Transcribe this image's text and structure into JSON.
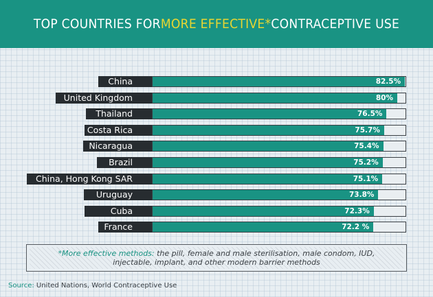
{
  "header": {
    "title_part1": "TOP COUNTRIES FOR ",
    "title_highlight": "MORE EFFECTIVE*",
    "title_part2": " CONTRACEPTIVE USE"
  },
  "colors": {
    "accent": "#199383",
    "highlight": "#e8d631",
    "label_bg": "#272c30",
    "track_bg": "#e9eef1"
  },
  "chart_data": {
    "type": "bar",
    "orientation": "horizontal",
    "categories": [
      "China",
      "United Kingdom",
      "Thailand",
      "Costa Rica",
      "Nicaragua",
      "Brazil",
      "China, Hong Kong SAR",
      "Uruguay",
      "Cuba",
      "France"
    ],
    "values": [
      82.5,
      80,
      76.5,
      75.7,
      75.4,
      75.2,
      75.1,
      73.8,
      72.3,
      72.2
    ],
    "value_labels": [
      "82.5%",
      "80%",
      "76.5%",
      "75.7%",
      "75.4%",
      "75.2%",
      "75.1%",
      "73.8%",
      "72.3%",
      "72.2 %"
    ],
    "xlim": [
      0,
      100
    ],
    "grid": false,
    "legend": "none"
  },
  "footnote": {
    "key": "*More effective methods:",
    "text": " the pill, female and male sterilisation, male condom, IUD, injectable, implant, and other modern barrier methods"
  },
  "source": {
    "key": "Source:",
    "text": " United Nations, World Contraceptive Use"
  }
}
